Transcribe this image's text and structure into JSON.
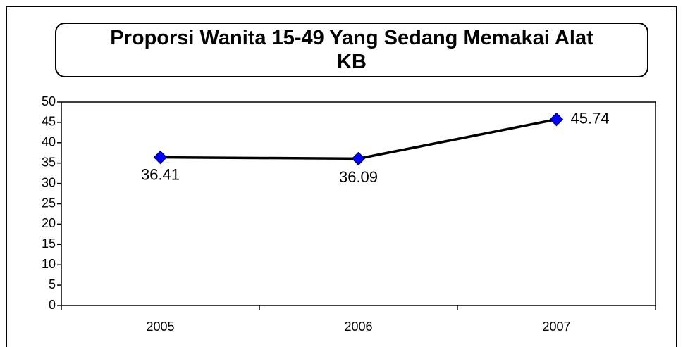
{
  "chart_data": {
    "type": "line",
    "title": "Proporsi Wanita 15-49 Yang Sedang Memakai Alat KB",
    "categories": [
      "2005",
      "2006",
      "2007"
    ],
    "values": [
      36.41,
      36.09,
      45.74
    ],
    "color": "#0000ff",
    "line_color": "#000000",
    "ylim": [
      0,
      50
    ],
    "yticks": [
      0,
      5,
      10,
      15,
      20,
      25,
      30,
      35,
      40,
      45,
      50
    ]
  }
}
